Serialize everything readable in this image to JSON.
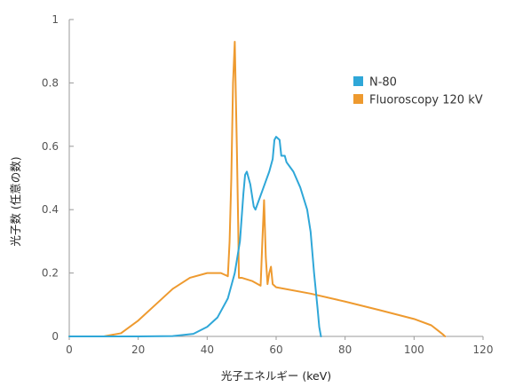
{
  "chart_data": {
    "type": "line",
    "title": "",
    "xlabel": "光子エネルギー (keV)",
    "ylabel": "光子数 (任意の数)",
    "xlim": [
      0,
      120
    ],
    "ylim": [
      0,
      1
    ],
    "x_ticks": [
      "0",
      "20",
      "40",
      "60",
      "80",
      "100",
      "120"
    ],
    "y_ticks": [
      "0",
      "0.2",
      "0.4",
      "0.6",
      "0.8",
      "1"
    ],
    "grid": false,
    "legend_position": "top-right",
    "series": [
      {
        "name": "N-80",
        "color": "#2fa7d8",
        "points": [
          [
            0,
            0
          ],
          [
            20,
            0
          ],
          [
            30,
            0.001
          ],
          [
            36,
            0.008
          ],
          [
            40,
            0.03
          ],
          [
            43,
            0.06
          ],
          [
            46,
            0.12
          ],
          [
            48,
            0.2
          ],
          [
            49.5,
            0.3
          ],
          [
            50.5,
            0.45
          ],
          [
            51,
            0.51
          ],
          [
            51.5,
            0.52
          ],
          [
            52.5,
            0.48
          ],
          [
            53.5,
            0.41
          ],
          [
            54,
            0.4
          ],
          [
            55,
            0.43
          ],
          [
            56,
            0.46
          ],
          [
            57,
            0.49
          ],
          [
            58,
            0.52
          ],
          [
            59,
            0.56
          ],
          [
            59.5,
            0.62
          ],
          [
            60,
            0.63
          ],
          [
            61,
            0.62
          ],
          [
            61.5,
            0.57
          ],
          [
            62.5,
            0.57
          ],
          [
            63,
            0.55
          ],
          [
            64,
            0.535
          ],
          [
            65,
            0.52
          ],
          [
            67,
            0.47
          ],
          [
            69,
            0.4
          ],
          [
            70,
            0.33
          ],
          [
            71,
            0.2
          ],
          [
            72,
            0.09
          ],
          [
            72.5,
            0.03
          ],
          [
            73,
            0
          ]
        ]
      },
      {
        "name": "Fluoroscopy 120 kV",
        "color": "#ee9a2f",
        "points": [
          [
            0,
            0
          ],
          [
            10,
            0
          ],
          [
            15,
            0.01
          ],
          [
            20,
            0.05
          ],
          [
            25,
            0.1
          ],
          [
            30,
            0.15
          ],
          [
            35,
            0.185
          ],
          [
            40,
            0.2
          ],
          [
            44,
            0.2
          ],
          [
            46,
            0.19
          ],
          [
            46.5,
            0.3
          ],
          [
            47,
            0.5
          ],
          [
            47.5,
            0.8
          ],
          [
            48,
            0.93
          ],
          [
            48.6,
            0.6
          ],
          [
            49,
            0.35
          ],
          [
            49.2,
            0.185
          ],
          [
            50,
            0.185
          ],
          [
            53,
            0.175
          ],
          [
            55.5,
            0.16
          ],
          [
            56,
            0.3
          ],
          [
            56.5,
            0.43
          ],
          [
            57,
            0.25
          ],
          [
            57.5,
            0.165
          ],
          [
            58,
            0.2
          ],
          [
            58.5,
            0.22
          ],
          [
            59,
            0.165
          ],
          [
            60,
            0.155
          ],
          [
            70,
            0.135
          ],
          [
            80,
            0.11
          ],
          [
            90,
            0.083
          ],
          [
            100,
            0.055
          ],
          [
            105,
            0.035
          ],
          [
            107,
            0.018
          ],
          [
            108.5,
            0.005
          ],
          [
            109,
            0
          ]
        ]
      }
    ]
  }
}
